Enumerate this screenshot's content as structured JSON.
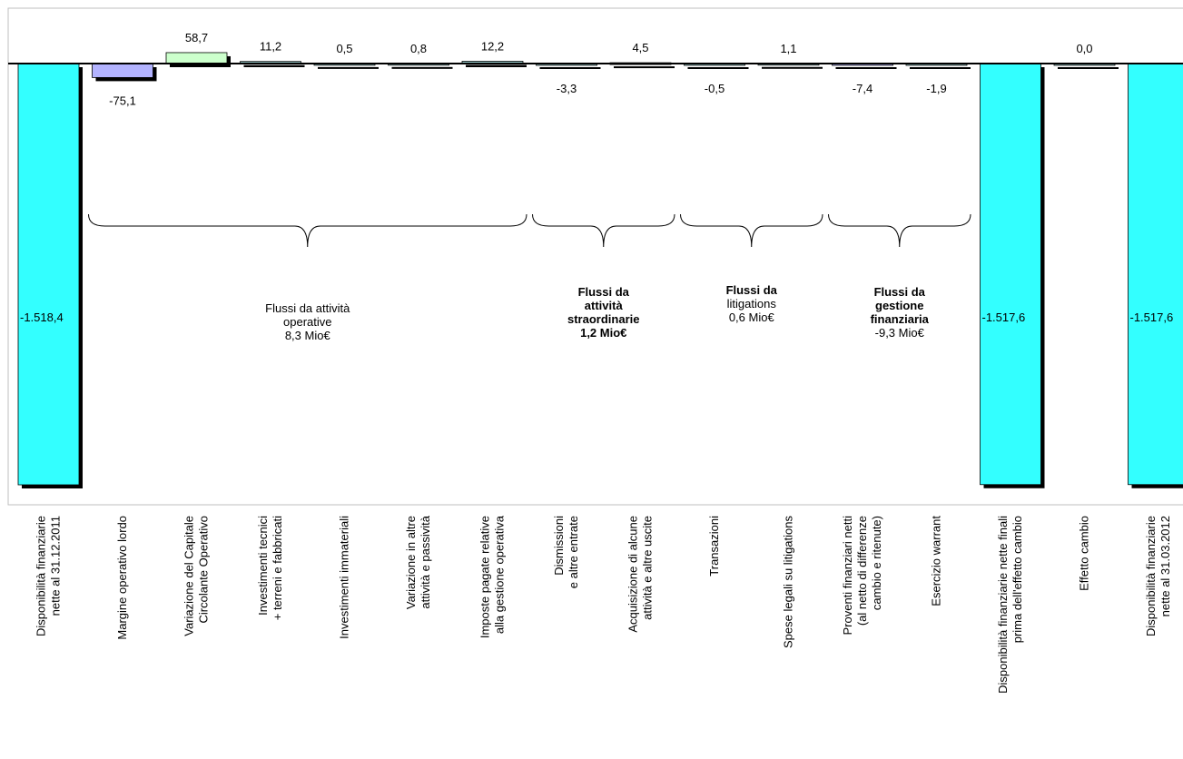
{
  "chart_data": {
    "type": "bar",
    "subtype": "waterfall",
    "unit": "Mio€",
    "bars": [
      {
        "category": [
          "Disponibilità finanziarie",
          "nette al 31.12.2011"
        ],
        "value": -1518.4,
        "label": "-1.518,4",
        "kind": "total",
        "color": "#33FFFF"
      },
      {
        "category": [
          "Margine operativo lordo"
        ],
        "value": -75.1,
        "label": "-75,1",
        "kind": "delta",
        "color": "#B3B3FF"
      },
      {
        "category": [
          "Variazione del Capitale",
          "Circolante Operativo"
        ],
        "value": 58.7,
        "label": "58,7",
        "kind": "delta",
        "color": "#CCFFCC"
      },
      {
        "category": [
          "Investimenti tecnici",
          "+ terreni e fabbricati"
        ],
        "value": 11.2,
        "label": "11,2",
        "kind": "delta",
        "color": "#99CCCC"
      },
      {
        "category": [
          "Investimenti immateriali"
        ],
        "value": 0.5,
        "label": "0,5",
        "kind": "delta",
        "color": "#99CCCC"
      },
      {
        "category": [
          "Variazione in altre",
          "attività e passività"
        ],
        "value": 0.8,
        "label": "0,8",
        "kind": "delta",
        "color": "#99CCCC"
      },
      {
        "category": [
          "Imposte pagate relative",
          "alla gestione operativa"
        ],
        "value": 12.2,
        "label": "12,2",
        "kind": "delta",
        "color": "#99CCCC"
      },
      {
        "category": [
          "Dismissioni",
          "e altre entrate"
        ],
        "value": -3.3,
        "label": "-3,3",
        "kind": "delta",
        "color": "#99CCCC"
      },
      {
        "category": [
          "Acquisizione di alcune",
          "attività e altre uscite"
        ],
        "value": 4.5,
        "label": "4,5",
        "kind": "delta",
        "color": "#99CCCC"
      },
      {
        "category": [
          "Transazioni"
        ],
        "value": -0.5,
        "label": "-0,5",
        "kind": "delta",
        "color": "#99CCCC"
      },
      {
        "category": [
          "Spese legali su litigations"
        ],
        "value": 1.1,
        "label": "1,1",
        "kind": "delta",
        "color": "#99CCCC"
      },
      {
        "category": [
          "Proventi finanziari netti",
          "(al netto di differenze",
          "cambio e ritenute)"
        ],
        "value": -7.4,
        "label": "-7,4",
        "kind": "delta",
        "color": "#B3B3FF"
      },
      {
        "category": [
          "Esercizio warrant"
        ],
        "value": -1.9,
        "label": "-1,9",
        "kind": "delta",
        "color": "#99CCCC"
      },
      {
        "category": [
          "Disponibilità finanziarie nette finali",
          "prima dell'effetto cambio"
        ],
        "value": -1517.6,
        "label": "-1.517,6",
        "kind": "total",
        "color": "#33FFFF"
      },
      {
        "category": [
          "Effetto cambio"
        ],
        "value": 0.0,
        "label": "0,0",
        "kind": "delta",
        "color": "#99CCCC"
      },
      {
        "category": [
          "Disponibilità finanziarie",
          "nette al 31.03.2012"
        ],
        "value": -1517.6,
        "label": "-1.517,6",
        "kind": "total",
        "color": "#33FFFF"
      }
    ],
    "groups": [
      {
        "from": 1,
        "to": 6,
        "lines": [
          "Flussi da attività",
          "operative",
          "8,3 Mio€"
        ],
        "bold": [
          false,
          false,
          false
        ]
      },
      {
        "from": 7,
        "to": 8,
        "lines": [
          "Flussi da",
          "attività",
          "straordinarie",
          "1,2 Mio€"
        ],
        "bold": [
          true,
          true,
          true,
          true
        ]
      },
      {
        "from": 9,
        "to": 10,
        "lines": [
          "Flussi da",
          "litigations",
          "0,6 Mio€"
        ],
        "bold": [
          true,
          false,
          false
        ]
      },
      {
        "from": 11,
        "to": 12,
        "lines": [
          "Flussi da",
          "gestione",
          "finanziaria",
          "-9,3 Mio€"
        ],
        "bold": [
          true,
          true,
          true,
          false
        ]
      }
    ],
    "legend": "none",
    "grid": false,
    "xlabel": "",
    "ylabel": "",
    "title": ""
  }
}
